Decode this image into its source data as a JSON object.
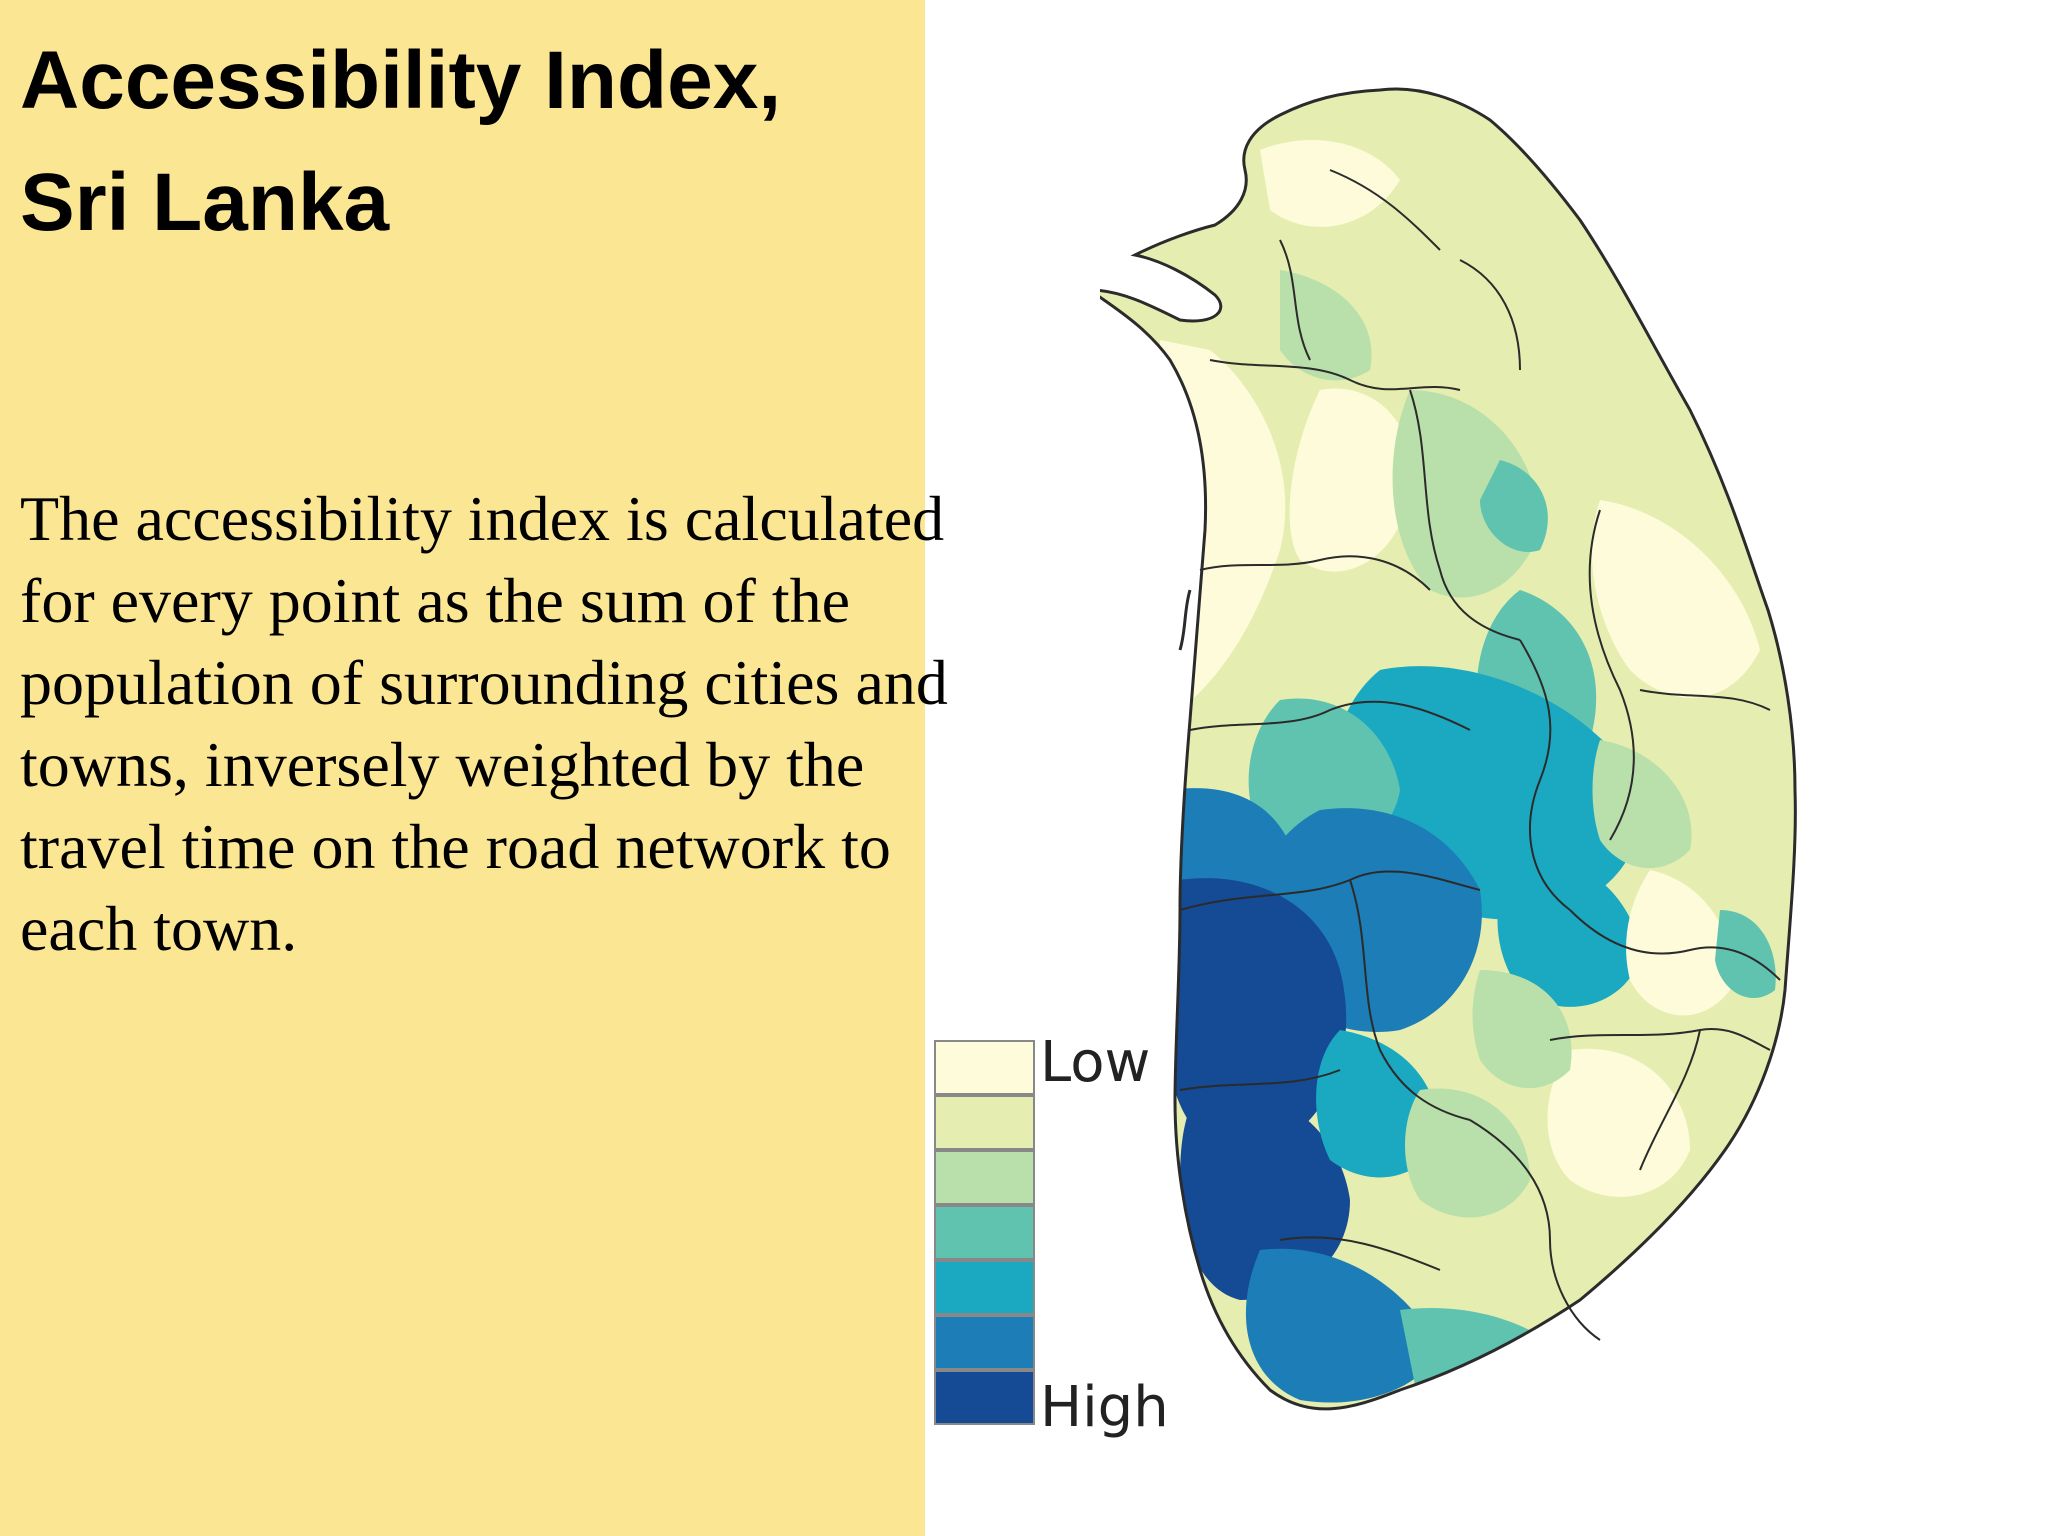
{
  "slide": {
    "title_lines": [
      "Accessibility Index,",
      "Sri Lanka"
    ],
    "body_lines": [
      "The accessibility index is calculated",
      "for every point as the sum of the",
      "population of surrounding cities and",
      "towns, inversely weighted by the",
      "travel time on the road network to",
      "each town."
    ],
    "background_color": "#fbe693"
  },
  "legend": {
    "low_label": "Low",
    "high_label": "High",
    "classes": [
      "#fdfbd9",
      "#e5eeb0",
      "#b9dfaa",
      "#5fc3b0",
      "#1ba9c2",
      "#1d7db7",
      "#154a94"
    ]
  },
  "map": {
    "region": "Sri Lanka",
    "colors": {
      "outline": "#2b2b2b",
      "low": "#fdfbd9",
      "high": "#154a94"
    }
  }
}
